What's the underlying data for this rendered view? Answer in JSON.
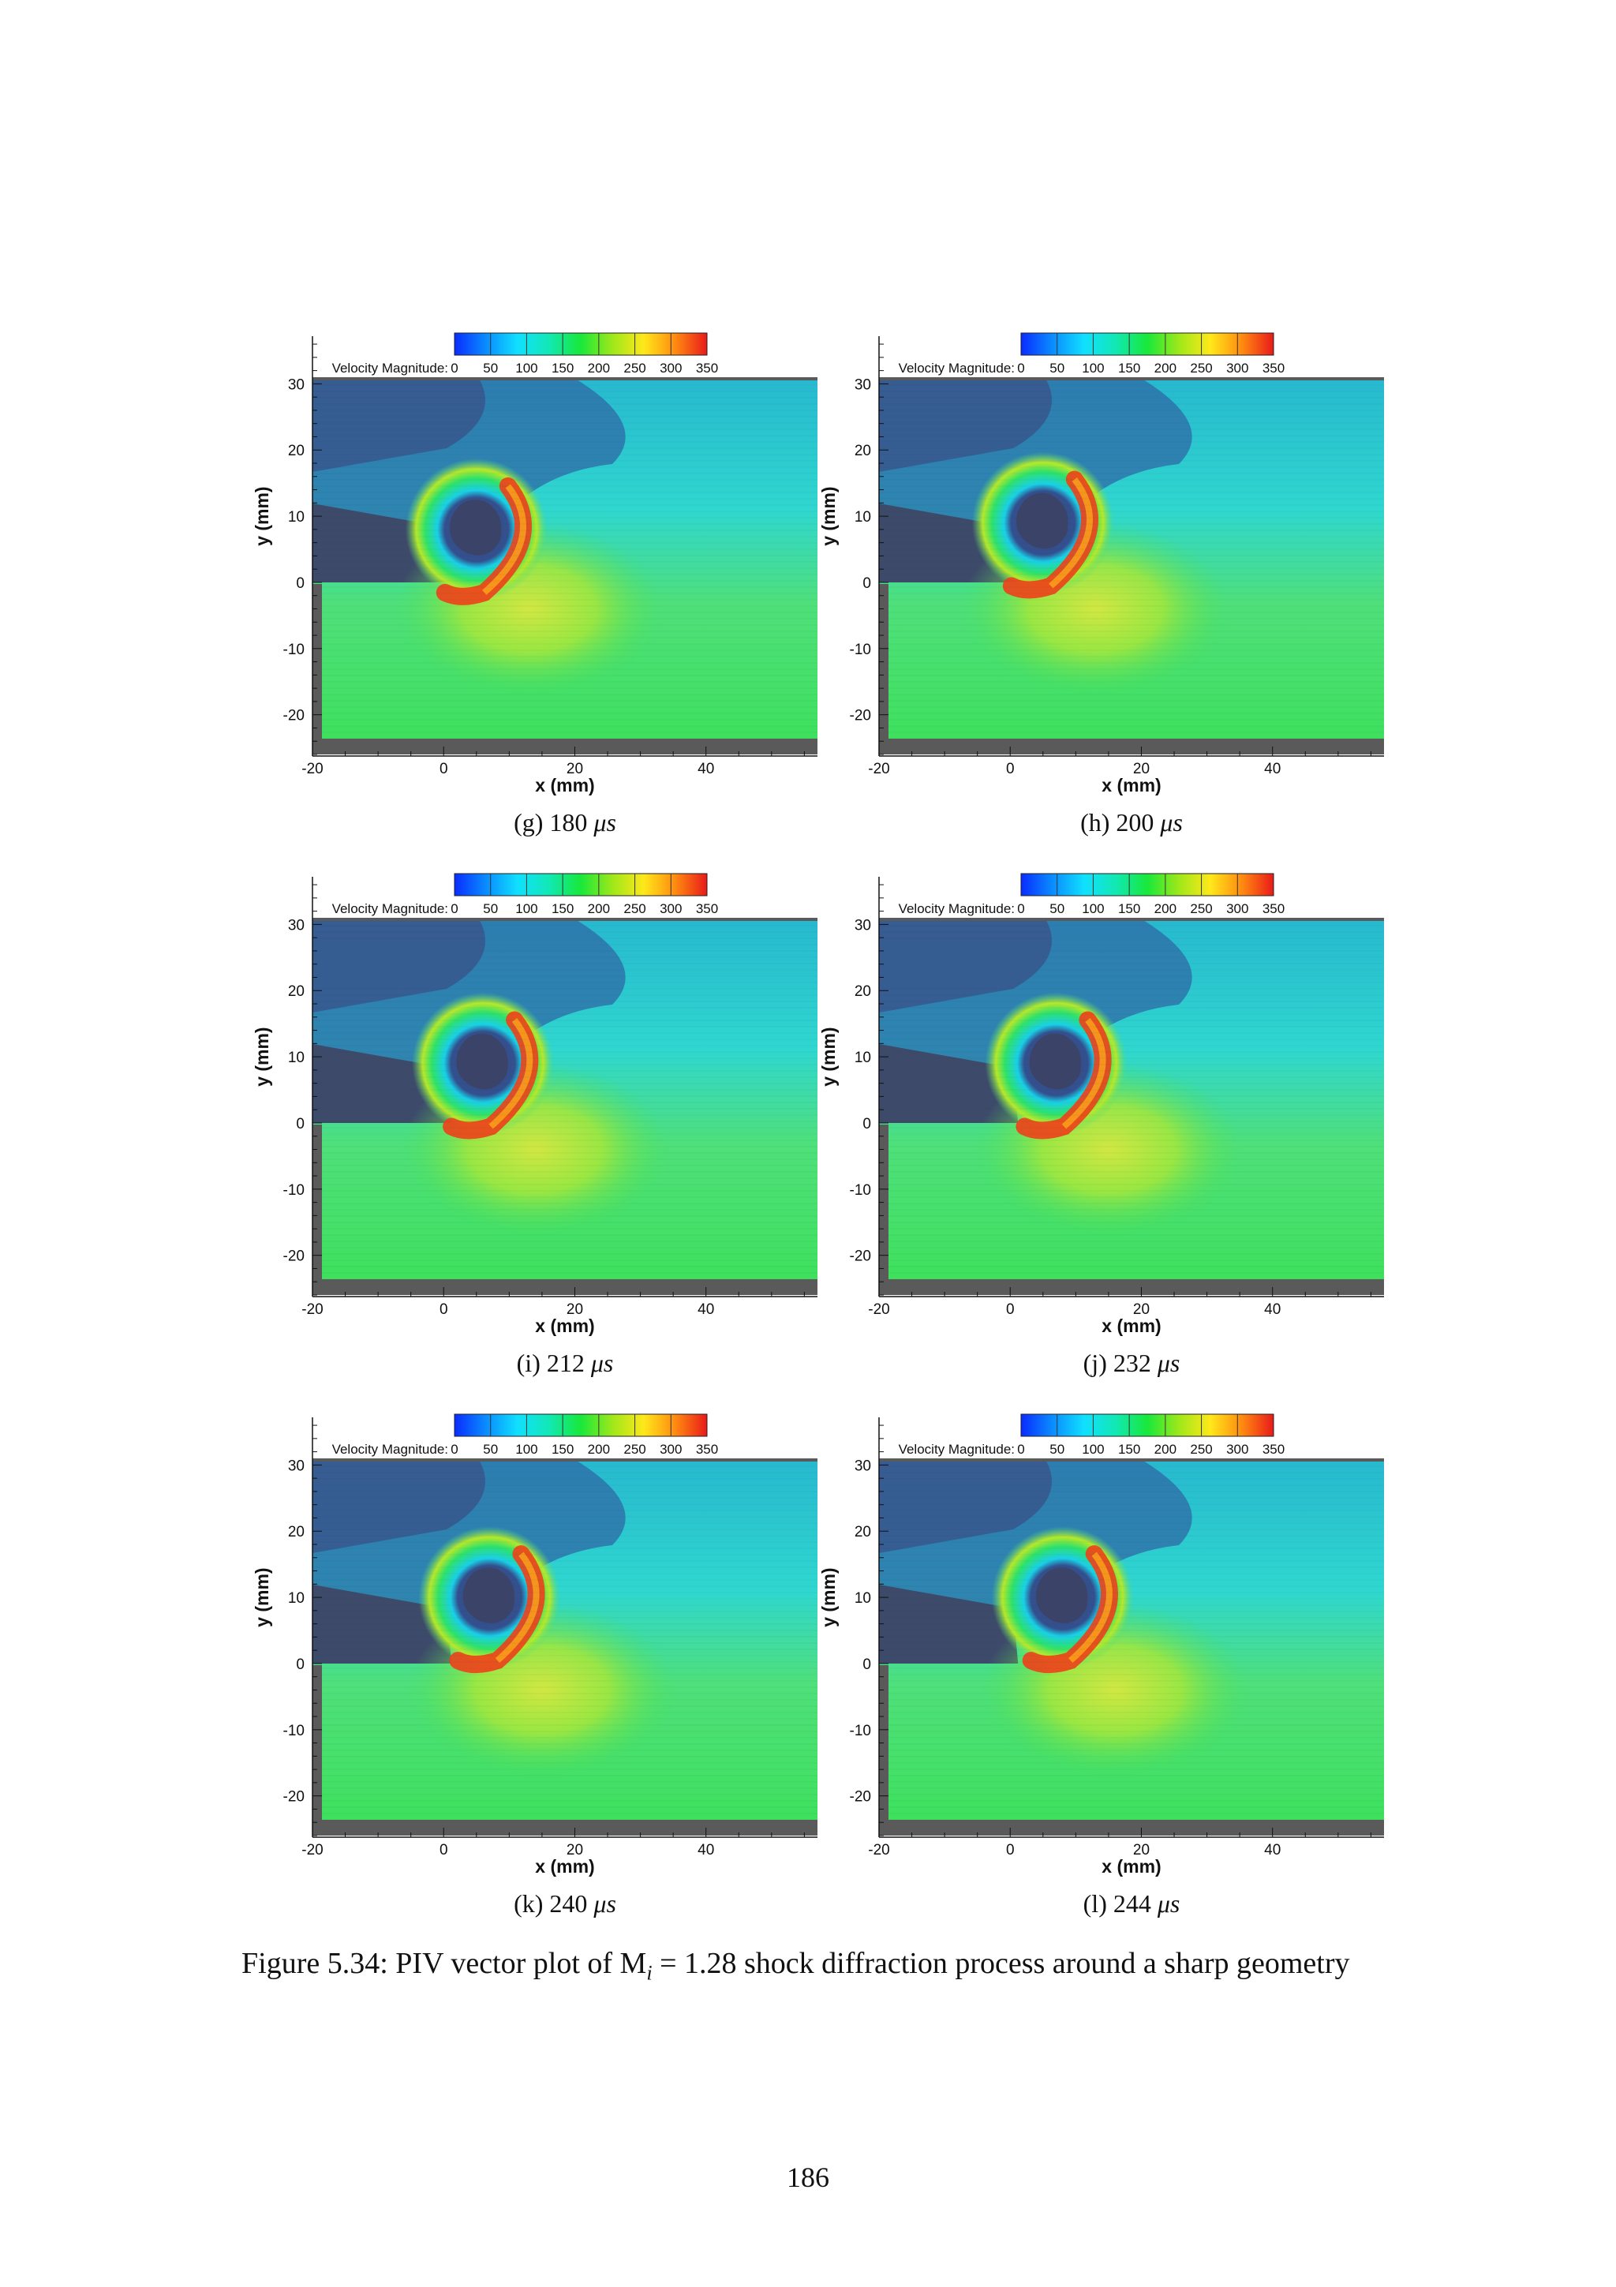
{
  "figure": {
    "caption_prefix": "Figure 5.34:",
    "caption_text": "PIV vector plot of M",
    "caption_sub": "i",
    "caption_rest": " = 1.28 shock diffraction process around a sharp geometry"
  },
  "page_number": "186",
  "colorbar": {
    "label": "Velocity Magnitude:",
    "ticks": [
      "0",
      "50",
      "100",
      "150",
      "200",
      "250",
      "300",
      "350"
    ],
    "colors": [
      "#0a2cff",
      "#0a8cff",
      "#10e0ff",
      "#12e8b4",
      "#18e83a",
      "#9ee81a",
      "#ffe81a",
      "#ff8a10",
      "#e81a1a"
    ]
  },
  "axes": {
    "xlabel": "x (mm)",
    "ylabel": "y (mm)",
    "xticks": [
      "-20",
      "0",
      "20",
      "40"
    ],
    "yticks": [
      "30",
      "20",
      "10",
      "0",
      "-10",
      "-20"
    ]
  },
  "panels": [
    {
      "label": "(g)",
      "time": "180",
      "unit": "μs"
    },
    {
      "label": "(h)",
      "time": "200",
      "unit": "μs"
    },
    {
      "label": "(i)",
      "time": "212",
      "unit": "μs"
    },
    {
      "label": "(j)",
      "time": "232",
      "unit": "μs"
    },
    {
      "label": "(k)",
      "time": "240",
      "unit": "μs"
    },
    {
      "label": "(l)",
      "time": "244",
      "unit": "μs"
    }
  ],
  "chart_data": {
    "type": "heatmap",
    "colorbar_title": "Velocity Magnitude:",
    "colorbar_range": [
      0,
      350
    ],
    "xlabel": "x (mm)",
    "ylabel": "y (mm)",
    "xlim": [
      -20,
      57
    ],
    "ylim": [
      -26,
      31
    ],
    "x_ticks": [
      -20,
      0,
      20,
      40
    ],
    "y_ticks": [
      -20,
      -10,
      0,
      10,
      20,
      30
    ],
    "frames_us": [
      180,
      200,
      212,
      232,
      240,
      244
    ],
    "vortex_center_mm": [
      [
        5,
        8
      ],
      [
        5,
        9
      ],
      [
        6,
        9
      ],
      [
        7,
        9
      ],
      [
        7,
        10
      ],
      [
        8,
        10
      ]
    ]
  }
}
